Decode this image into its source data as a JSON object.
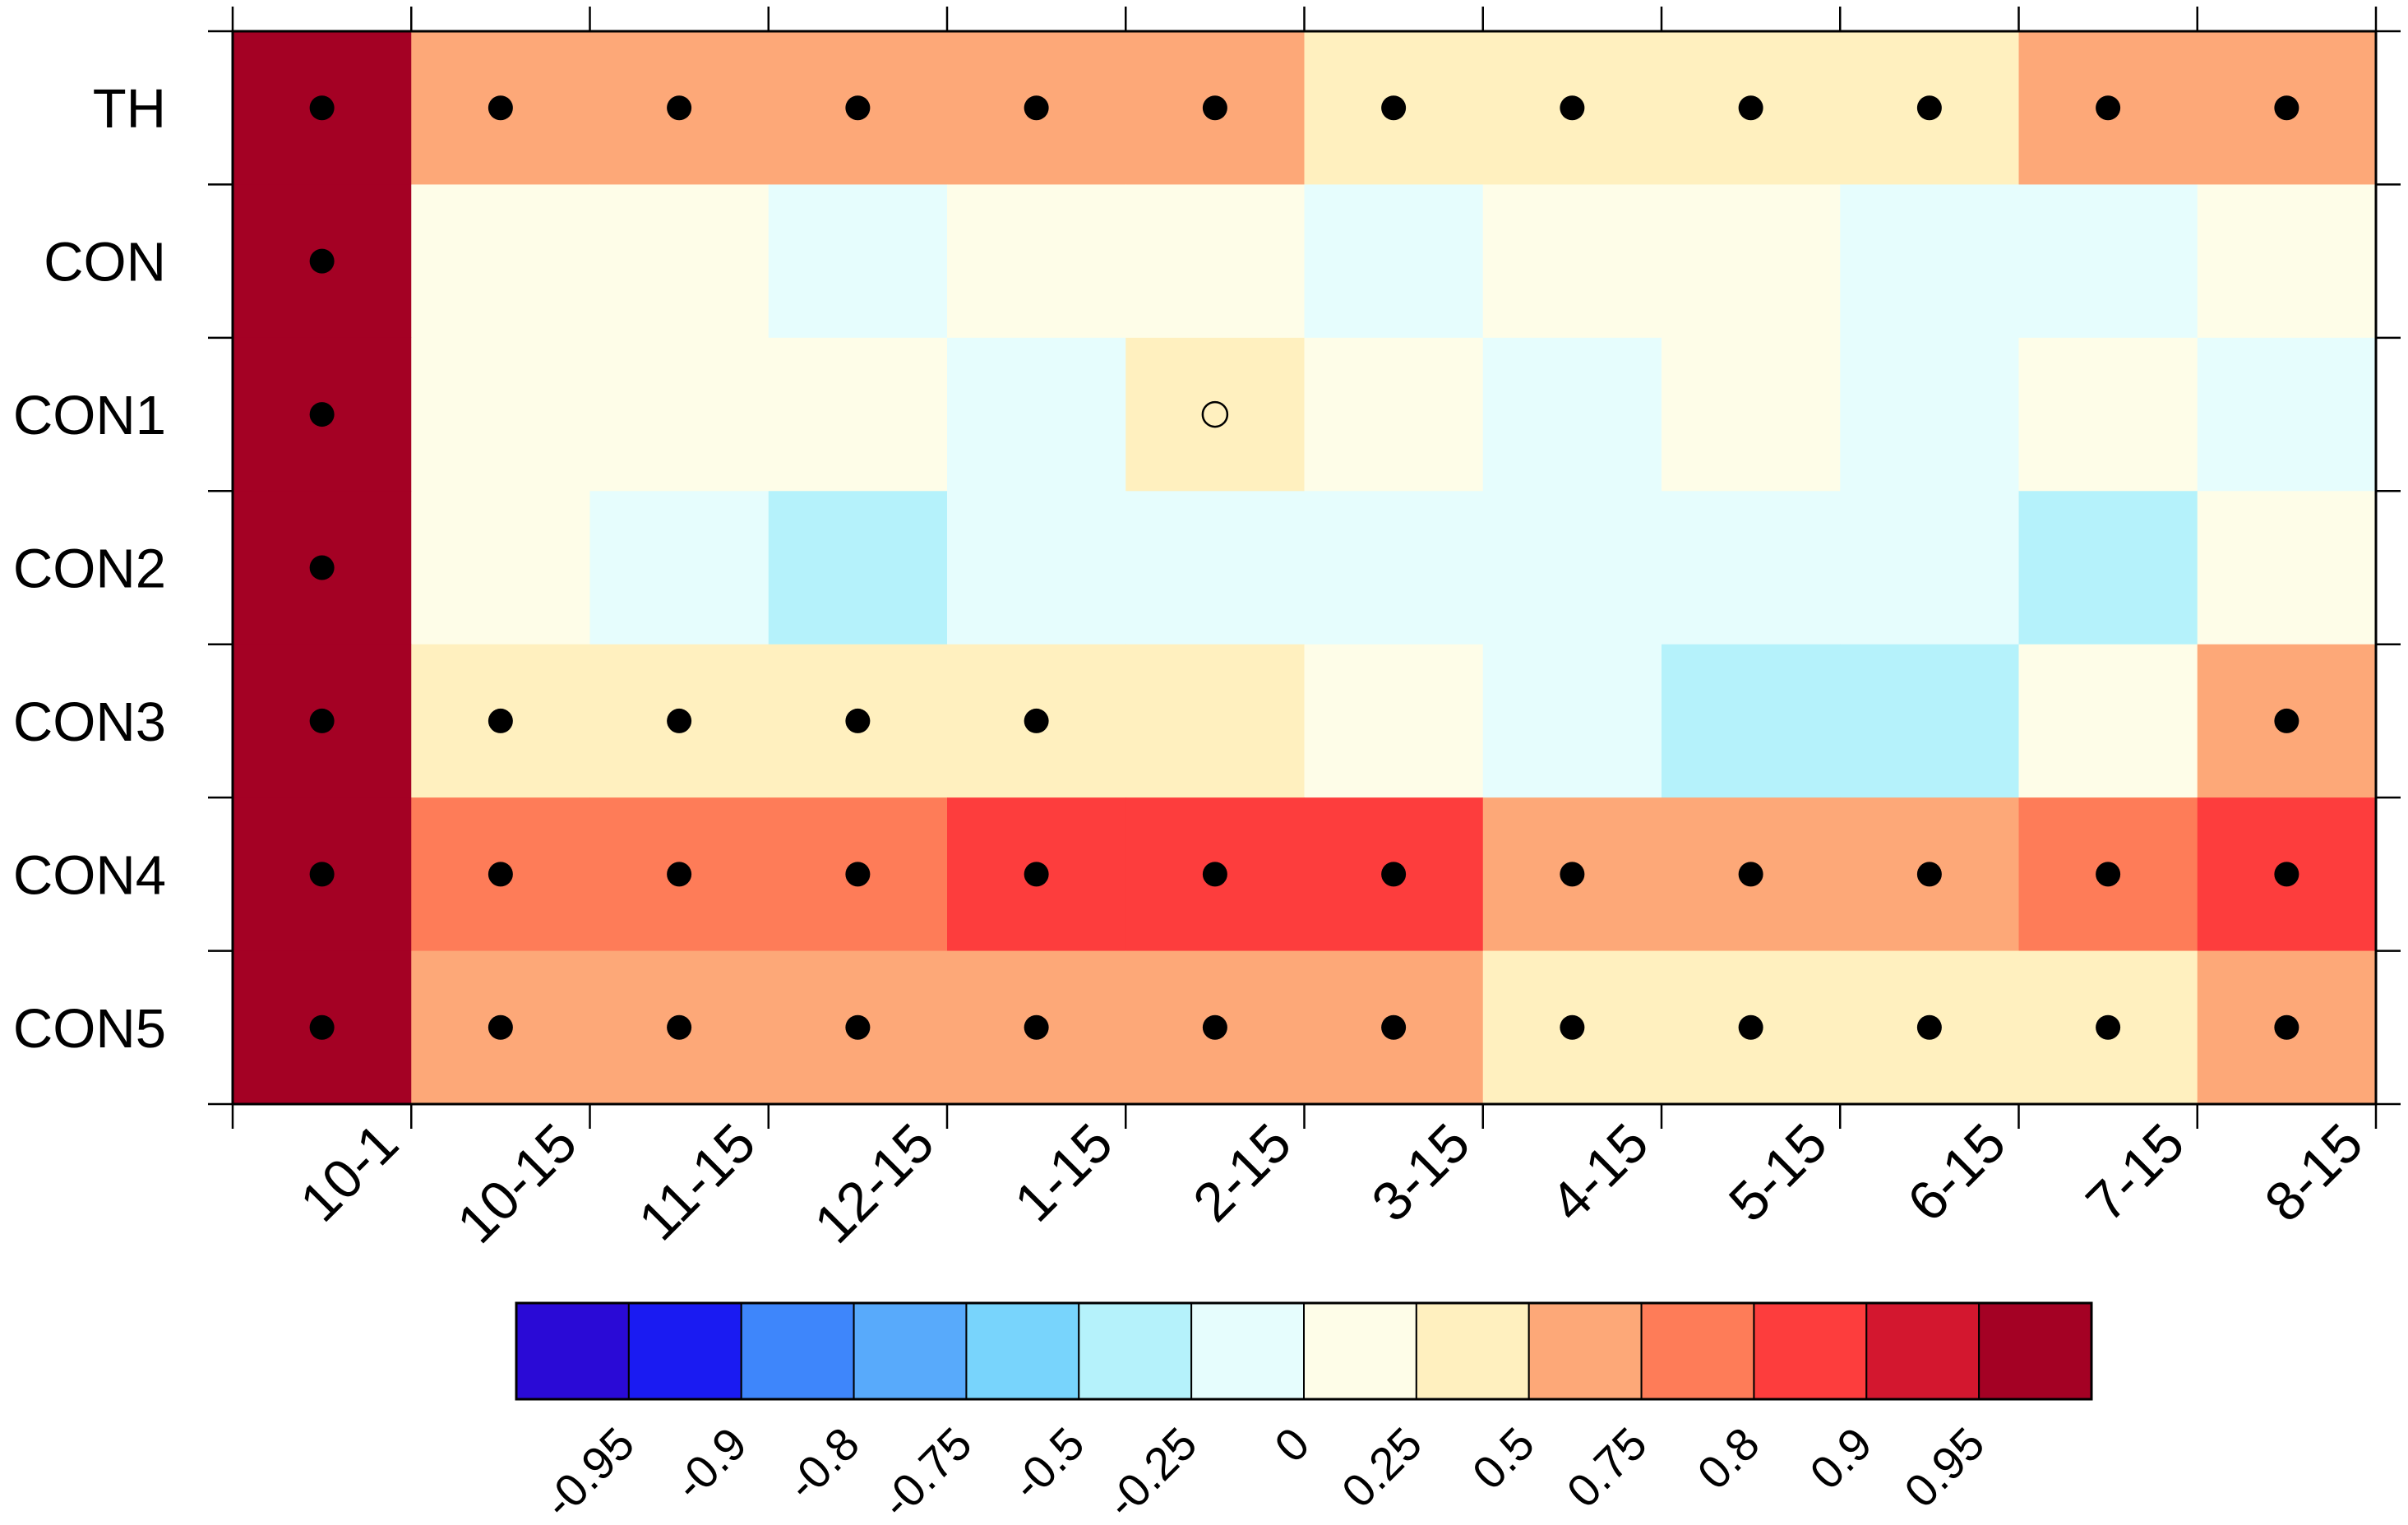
{
  "chart_data": {
    "type": "heatmap",
    "title": "",
    "xlabel": "",
    "ylabel": "",
    "x_categories": [
      "10-1",
      "10-15",
      "11-15",
      "12-15",
      "1-15",
      "2-15",
      "3-15",
      "4-15",
      "5-15",
      "6-15",
      "7-15",
      "8-15"
    ],
    "y_categories": [
      "TH",
      "CON",
      "CON1",
      "CON2",
      "CON3",
      "CON4",
      "CON5"
    ],
    "values": [
      [
        0.97,
        0.6,
        0.6,
        0.6,
        0.6,
        0.6,
        0.4,
        0.4,
        0.4,
        0.4,
        0.6,
        0.6
      ],
      [
        0.97,
        0.1,
        0.1,
        -0.1,
        0.1,
        0.1,
        -0.1,
        0.1,
        0.1,
        -0.1,
        -0.1,
        0.1
      ],
      [
        0.97,
        0.1,
        0.1,
        0.1,
        -0.1,
        0.4,
        0.1,
        -0.1,
        0.1,
        -0.1,
        0.1,
        -0.1
      ],
      [
        0.97,
        0.1,
        -0.1,
        -0.4,
        -0.1,
        -0.1,
        -0.1,
        -0.1,
        -0.1,
        -0.1,
        -0.4,
        0.1
      ],
      [
        0.97,
        0.4,
        0.4,
        0.4,
        0.4,
        0.4,
        0.1,
        -0.1,
        -0.4,
        -0.4,
        0.1,
        0.6
      ],
      [
        0.97,
        0.77,
        0.77,
        0.77,
        0.85,
        0.85,
        0.85,
        0.6,
        0.6,
        0.6,
        0.77,
        0.85
      ],
      [
        0.97,
        0.6,
        0.6,
        0.6,
        0.6,
        0.6,
        0.6,
        0.4,
        0.4,
        0.4,
        0.4,
        0.6
      ]
    ],
    "markers": [
      [
        "filled",
        "filled",
        "filled",
        "filled",
        "filled",
        "filled",
        "filled",
        "filled",
        "filled",
        "filled",
        "filled",
        "filled"
      ],
      [
        "filled",
        "",
        "",
        "",
        "",
        "",
        "",
        "",
        "",
        "",
        "",
        ""
      ],
      [
        "filled",
        "",
        "",
        "",
        "",
        "open",
        "",
        "",
        "",
        "",
        "",
        ""
      ],
      [
        "filled",
        "",
        "",
        "",
        "",
        "",
        "",
        "",
        "",
        "",
        "",
        ""
      ],
      [
        "filled",
        "filled",
        "filled",
        "filled",
        "filled",
        "",
        "",
        "",
        "",
        "",
        "",
        "filled"
      ],
      [
        "filled",
        "filled",
        "filled",
        "filled",
        "filled",
        "filled",
        "filled",
        "filled",
        "filled",
        "filled",
        "filled",
        "filled"
      ],
      [
        "filled",
        "filled",
        "filled",
        "filled",
        "filled",
        "filled",
        "filled",
        "filled",
        "filled",
        "filled",
        "filled",
        "filled"
      ]
    ],
    "colorbar": {
      "levels": [
        -0.95,
        -0.9,
        -0.8,
        -0.75,
        -0.5,
        -0.25,
        0,
        0.25,
        0.5,
        0.75,
        0.8,
        0.9,
        0.95
      ],
      "labels": [
        "-0.95",
        "-0.9",
        "-0.8",
        "-0.75",
        "-0.5",
        "-0.25",
        "0",
        "0.25",
        "0.5",
        "0.75",
        "0.8",
        "0.9",
        "0.95"
      ],
      "colors": [
        "#2a0ad6",
        "#1a1bf2",
        "#3e86fb",
        "#58aafb",
        "#78d4fc",
        "#b5f2fb",
        "#e6fdfd",
        "#fefde8",
        "#fff0bf",
        "#fda878",
        "#fe7c58",
        "#fd3d3d",
        "#d3172f",
        "#a40124"
      ],
      "orientation": "horizontal",
      "placement": "bottom"
    }
  }
}
